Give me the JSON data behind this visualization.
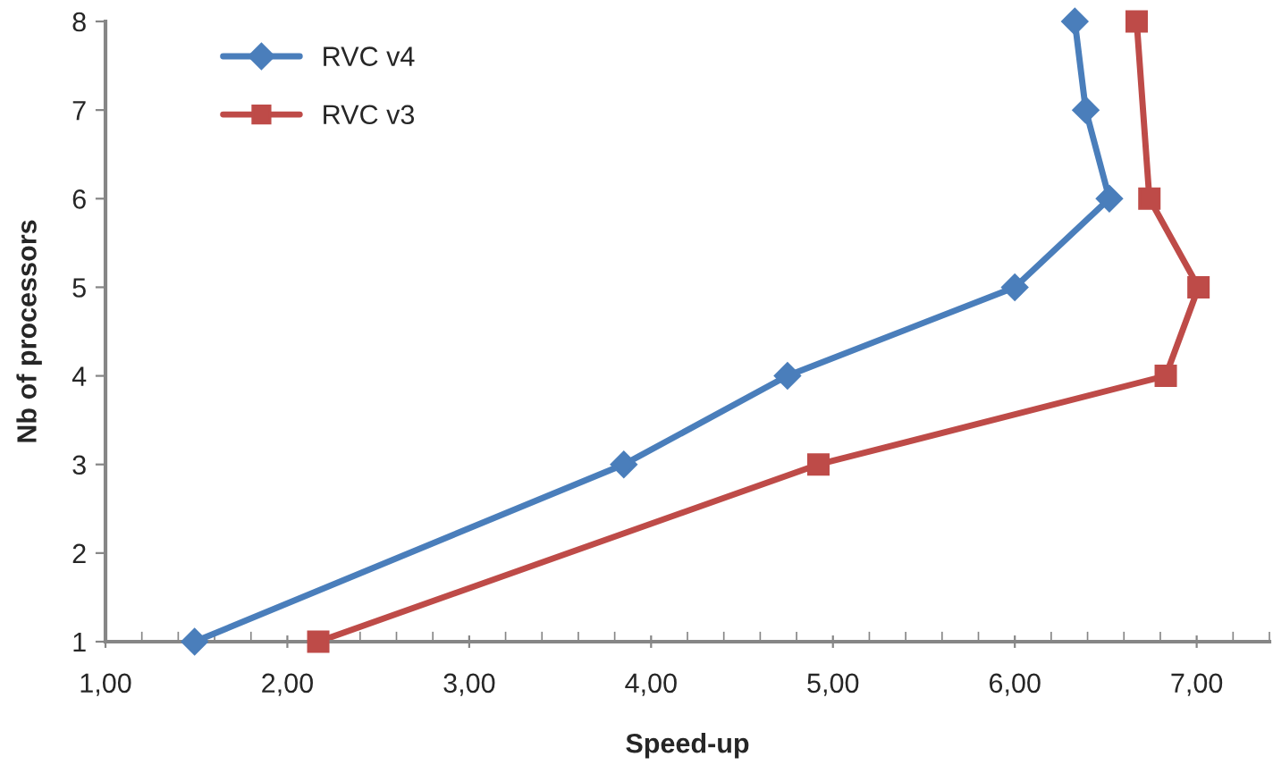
{
  "chart_data": {
    "type": "line",
    "xlabel": "Speed-up",
    "ylabel": "Nb of processors",
    "series": [
      {
        "name": "RVC v4",
        "color": "#4a7ebb",
        "marker": "diamond",
        "x": [
          1.49,
          3.85,
          4.75,
          6.0,
          6.52,
          6.39,
          6.33
        ],
        "values": [
          1,
          3,
          4,
          5,
          6,
          7,
          8
        ]
      },
      {
        "name": "RVC v3",
        "color": "#be4b48",
        "marker": "square",
        "x": [
          2.17,
          4.92,
          6.83,
          7.01,
          6.74,
          6.67
        ],
        "values": [
          1,
          3,
          4,
          5,
          6,
          8
        ]
      }
    ],
    "xlim": [
      1,
      7.4
    ],
    "xticks": [
      {
        "value": 1,
        "label": "1,00"
      },
      {
        "value": 2,
        "label": "2,00"
      },
      {
        "value": 3,
        "label": "3,00"
      },
      {
        "value": 4,
        "label": "4,00"
      },
      {
        "value": 5,
        "label": "5,00"
      },
      {
        "value": 6,
        "label": "6,00"
      },
      {
        "value": 7,
        "label": "7,00"
      }
    ],
    "ylim": [
      1,
      8
    ],
    "yticks": [
      1,
      2,
      3,
      4,
      5,
      6,
      7,
      8
    ],
    "grid": false,
    "legend": "top left",
    "line_style": "solid"
  }
}
